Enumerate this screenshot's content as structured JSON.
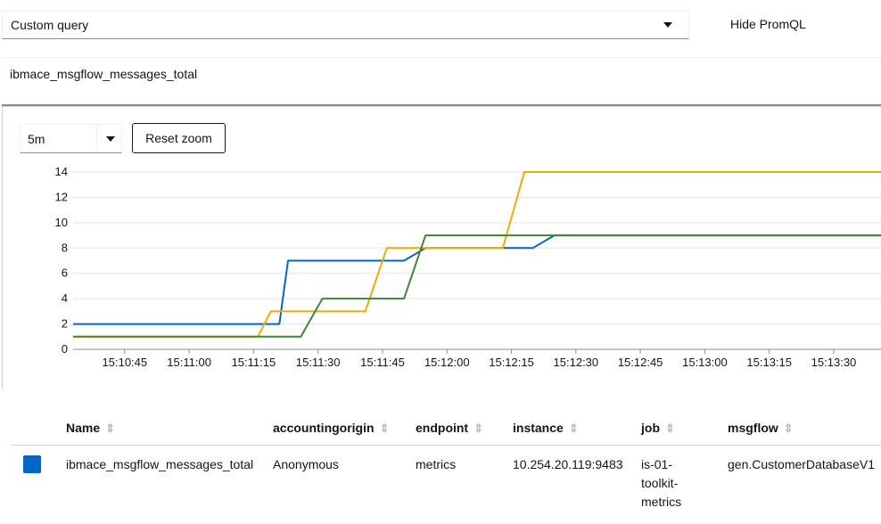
{
  "query_select": {
    "value": "Custom query"
  },
  "hide_promql": "Hide PromQL",
  "promql": "ibmace_msgflow_messages_total",
  "span_select": {
    "value": "5m"
  },
  "reset_zoom": "Reset zoom",
  "colors": {
    "blue": "#0066cc",
    "yellow": "#f0ab00",
    "green": "#3e8635",
    "grid": "#e3e3e3",
    "axis": "#8a8d90"
  },
  "chart_data": {
    "type": "line",
    "x_ticks": [
      "15:10:45",
      "15:11:00",
      "15:11:15",
      "15:11:30",
      "15:11:45",
      "15:12:00",
      "15:12:15",
      "15:12:30",
      "15:12:45",
      "15:13:00",
      "15:13:15",
      "15:13:30"
    ],
    "y_ticks": [
      0,
      2,
      4,
      6,
      8,
      10,
      12,
      14
    ],
    "ylim": [
      0,
      14
    ],
    "xlim": [
      "15:10:33",
      "15:13:41"
    ],
    "grid": true,
    "series": [
      {
        "color": "#0066cc",
        "x": [
          "15:10:33",
          "15:11:21",
          "15:11:23",
          "15:11:45",
          "15:11:50",
          "15:11:55",
          "15:12:20",
          "15:12:25",
          "15:13:41"
        ],
        "y": [
          2,
          2,
          7,
          7,
          7,
          8,
          8,
          9,
          9
        ]
      },
      {
        "color": "#f0ab00",
        "x": [
          "15:10:33",
          "15:11:16",
          "15:11:19",
          "15:11:41",
          "15:11:46",
          "15:12:01",
          "15:12:13",
          "15:12:18",
          "15:13:41"
        ],
        "y": [
          1,
          1,
          3,
          3,
          8,
          8,
          8,
          14,
          14
        ]
      },
      {
        "color": "#3e8635",
        "x": [
          "15:10:33",
          "15:11:26",
          "15:11:31",
          "15:11:50",
          "15:11:55",
          "15:12:01",
          "15:13:41"
        ],
        "y": [
          1,
          1,
          4,
          4,
          9,
          9,
          9
        ]
      }
    ]
  },
  "table": {
    "headers": [
      "Name",
      "accountingorigin",
      "endpoint",
      "instance",
      "job",
      "msgflow"
    ],
    "row": {
      "color": "#0066cc",
      "name": "ibmace_msgflow_messages_total",
      "accountingorigin": "Anonymous",
      "endpoint": "metrics",
      "instance": "10.254.20.119:9483",
      "job_lines": [
        "is-01-",
        "toolkit-",
        "metrics"
      ],
      "msgflow": "gen.CustomerDatabaseV1"
    }
  }
}
